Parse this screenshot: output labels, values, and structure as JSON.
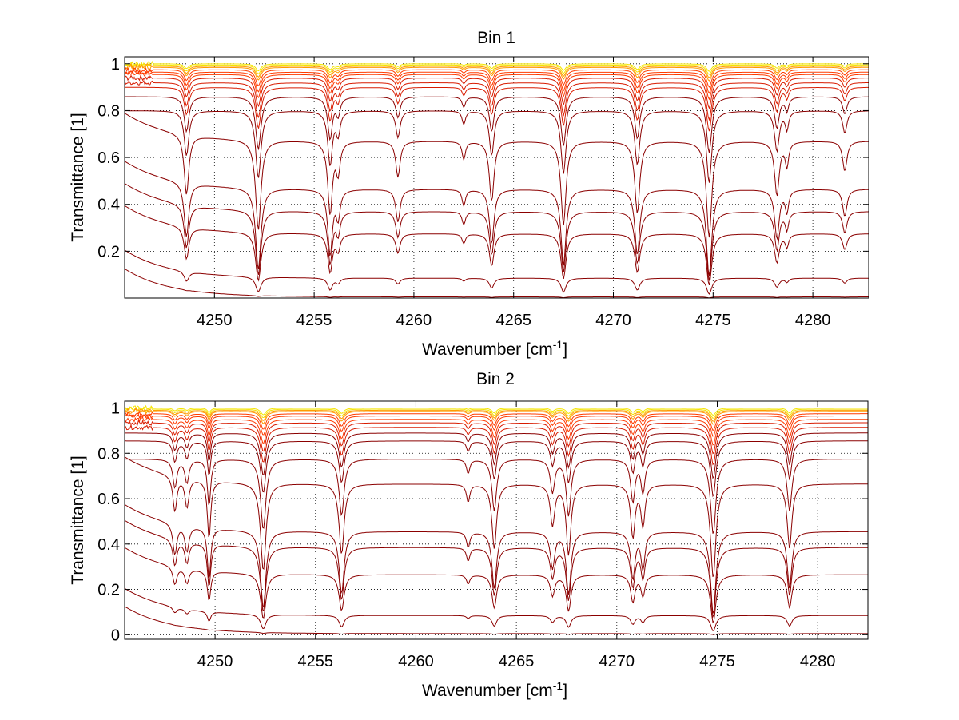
{
  "chart_data": [
    {
      "type": "line",
      "title": "Bin 1",
      "xlabel": "Wavenumber [cm",
      "xlabel_sup": "-1",
      "xlabel_end": "]",
      "ylabel": "Transmittance [1]",
      "xlim": [
        4245.5,
        4282.8
      ],
      "ylim": [
        0.0,
        1.03
      ],
      "xticks": [
        4250,
        4255,
        4260,
        4265,
        4270,
        4275,
        4280
      ],
      "yticks": [
        0.2,
        0.4,
        0.6,
        0.8,
        1
      ],
      "ytick_labels": [
        "0.2",
        "0.4",
        "0.6",
        "0.8",
        "1"
      ],
      "grid": true,
      "baselines": [
        1.0,
        0.995,
        0.99,
        0.985,
        0.975,
        0.965,
        0.955,
        0.94,
        0.92,
        0.9,
        0.86,
        0.8,
        0.67,
        0.465,
        0.37,
        0.275,
        0.085,
        0.005
      ],
      "absorption_lines": [
        {
          "x": 4248.6,
          "depth": 0.5,
          "width": 0.14
        },
        {
          "x": 4252.2,
          "depth": 0.75,
          "width": 0.16
        },
        {
          "x": 4255.8,
          "depth": 0.6,
          "width": 0.14
        },
        {
          "x": 4256.2,
          "depth": 0.25,
          "width": 0.12
        },
        {
          "x": 4259.2,
          "depth": 0.3,
          "width": 0.13
        },
        {
          "x": 4262.5,
          "depth": 0.15,
          "width": 0.1
        },
        {
          "x": 4263.9,
          "depth": 0.5,
          "width": 0.14
        },
        {
          "x": 4267.5,
          "depth": 0.7,
          "width": 0.15
        },
        {
          "x": 4271.2,
          "depth": 0.6,
          "width": 0.15
        },
        {
          "x": 4274.8,
          "depth": 0.8,
          "width": 0.16
        },
        {
          "x": 4278.2,
          "depth": 0.45,
          "width": 0.14
        },
        {
          "x": 4278.7,
          "depth": 0.2,
          "width": 0.1
        },
        {
          "x": 4281.6,
          "depth": 0.25,
          "width": 0.13
        }
      ]
    },
    {
      "type": "line",
      "title": "Bin 2",
      "xlabel": "Wavenumber [cm",
      "xlabel_sup": "-1",
      "xlabel_end": "]",
      "ylabel": "Transmittance [1]",
      "xlim": [
        4245.5,
        4282.5
      ],
      "ylim": [
        -0.02,
        1.03
      ],
      "xticks": [
        4250,
        4255,
        4260,
        4265,
        4270,
        4275,
        4280
      ],
      "yticks": [
        0,
        0.2,
        0.4,
        0.6,
        0.8,
        1
      ],
      "ytick_labels": [
        "0",
        "0.2",
        "0.4",
        "0.6",
        "0.8",
        "1"
      ],
      "grid": true,
      "baselines": [
        1.0,
        0.995,
        0.99,
        0.985,
        0.975,
        0.965,
        0.95,
        0.935,
        0.915,
        0.89,
        0.855,
        0.775,
        0.665,
        0.455,
        0.385,
        0.265,
        0.085,
        0.005
      ],
      "absorption_lines": [
        {
          "x": 4248.0,
          "depth": 0.3,
          "width": 0.12
        },
        {
          "x": 4248.6,
          "depth": 0.25,
          "width": 0.12
        },
        {
          "x": 4249.7,
          "depth": 0.5,
          "width": 0.1
        },
        {
          "x": 4252.4,
          "depth": 0.75,
          "width": 0.16
        },
        {
          "x": 4256.3,
          "depth": 0.6,
          "width": 0.15
        },
        {
          "x": 4262.6,
          "depth": 0.15,
          "width": 0.1
        },
        {
          "x": 4263.9,
          "depth": 0.55,
          "width": 0.14
        },
        {
          "x": 4266.8,
          "depth": 0.35,
          "width": 0.13
        },
        {
          "x": 4267.6,
          "depth": 0.6,
          "width": 0.14
        },
        {
          "x": 4270.8,
          "depth": 0.45,
          "width": 0.13
        },
        {
          "x": 4271.3,
          "depth": 0.35,
          "width": 0.12
        },
        {
          "x": 4274.8,
          "depth": 0.8,
          "width": 0.16
        },
        {
          "x": 4278.6,
          "depth": 0.55,
          "width": 0.14
        }
      ]
    }
  ],
  "colors": {
    "curve_dark": "#8b0000",
    "curve_mid": "#d81b00",
    "curve_light": "#ff3b00",
    "curve_near_one": "#ff9a00",
    "curve_top": "#f4e400",
    "curve_noise": "#40c0ff",
    "axes": "#000000",
    "grid": "#000000"
  }
}
